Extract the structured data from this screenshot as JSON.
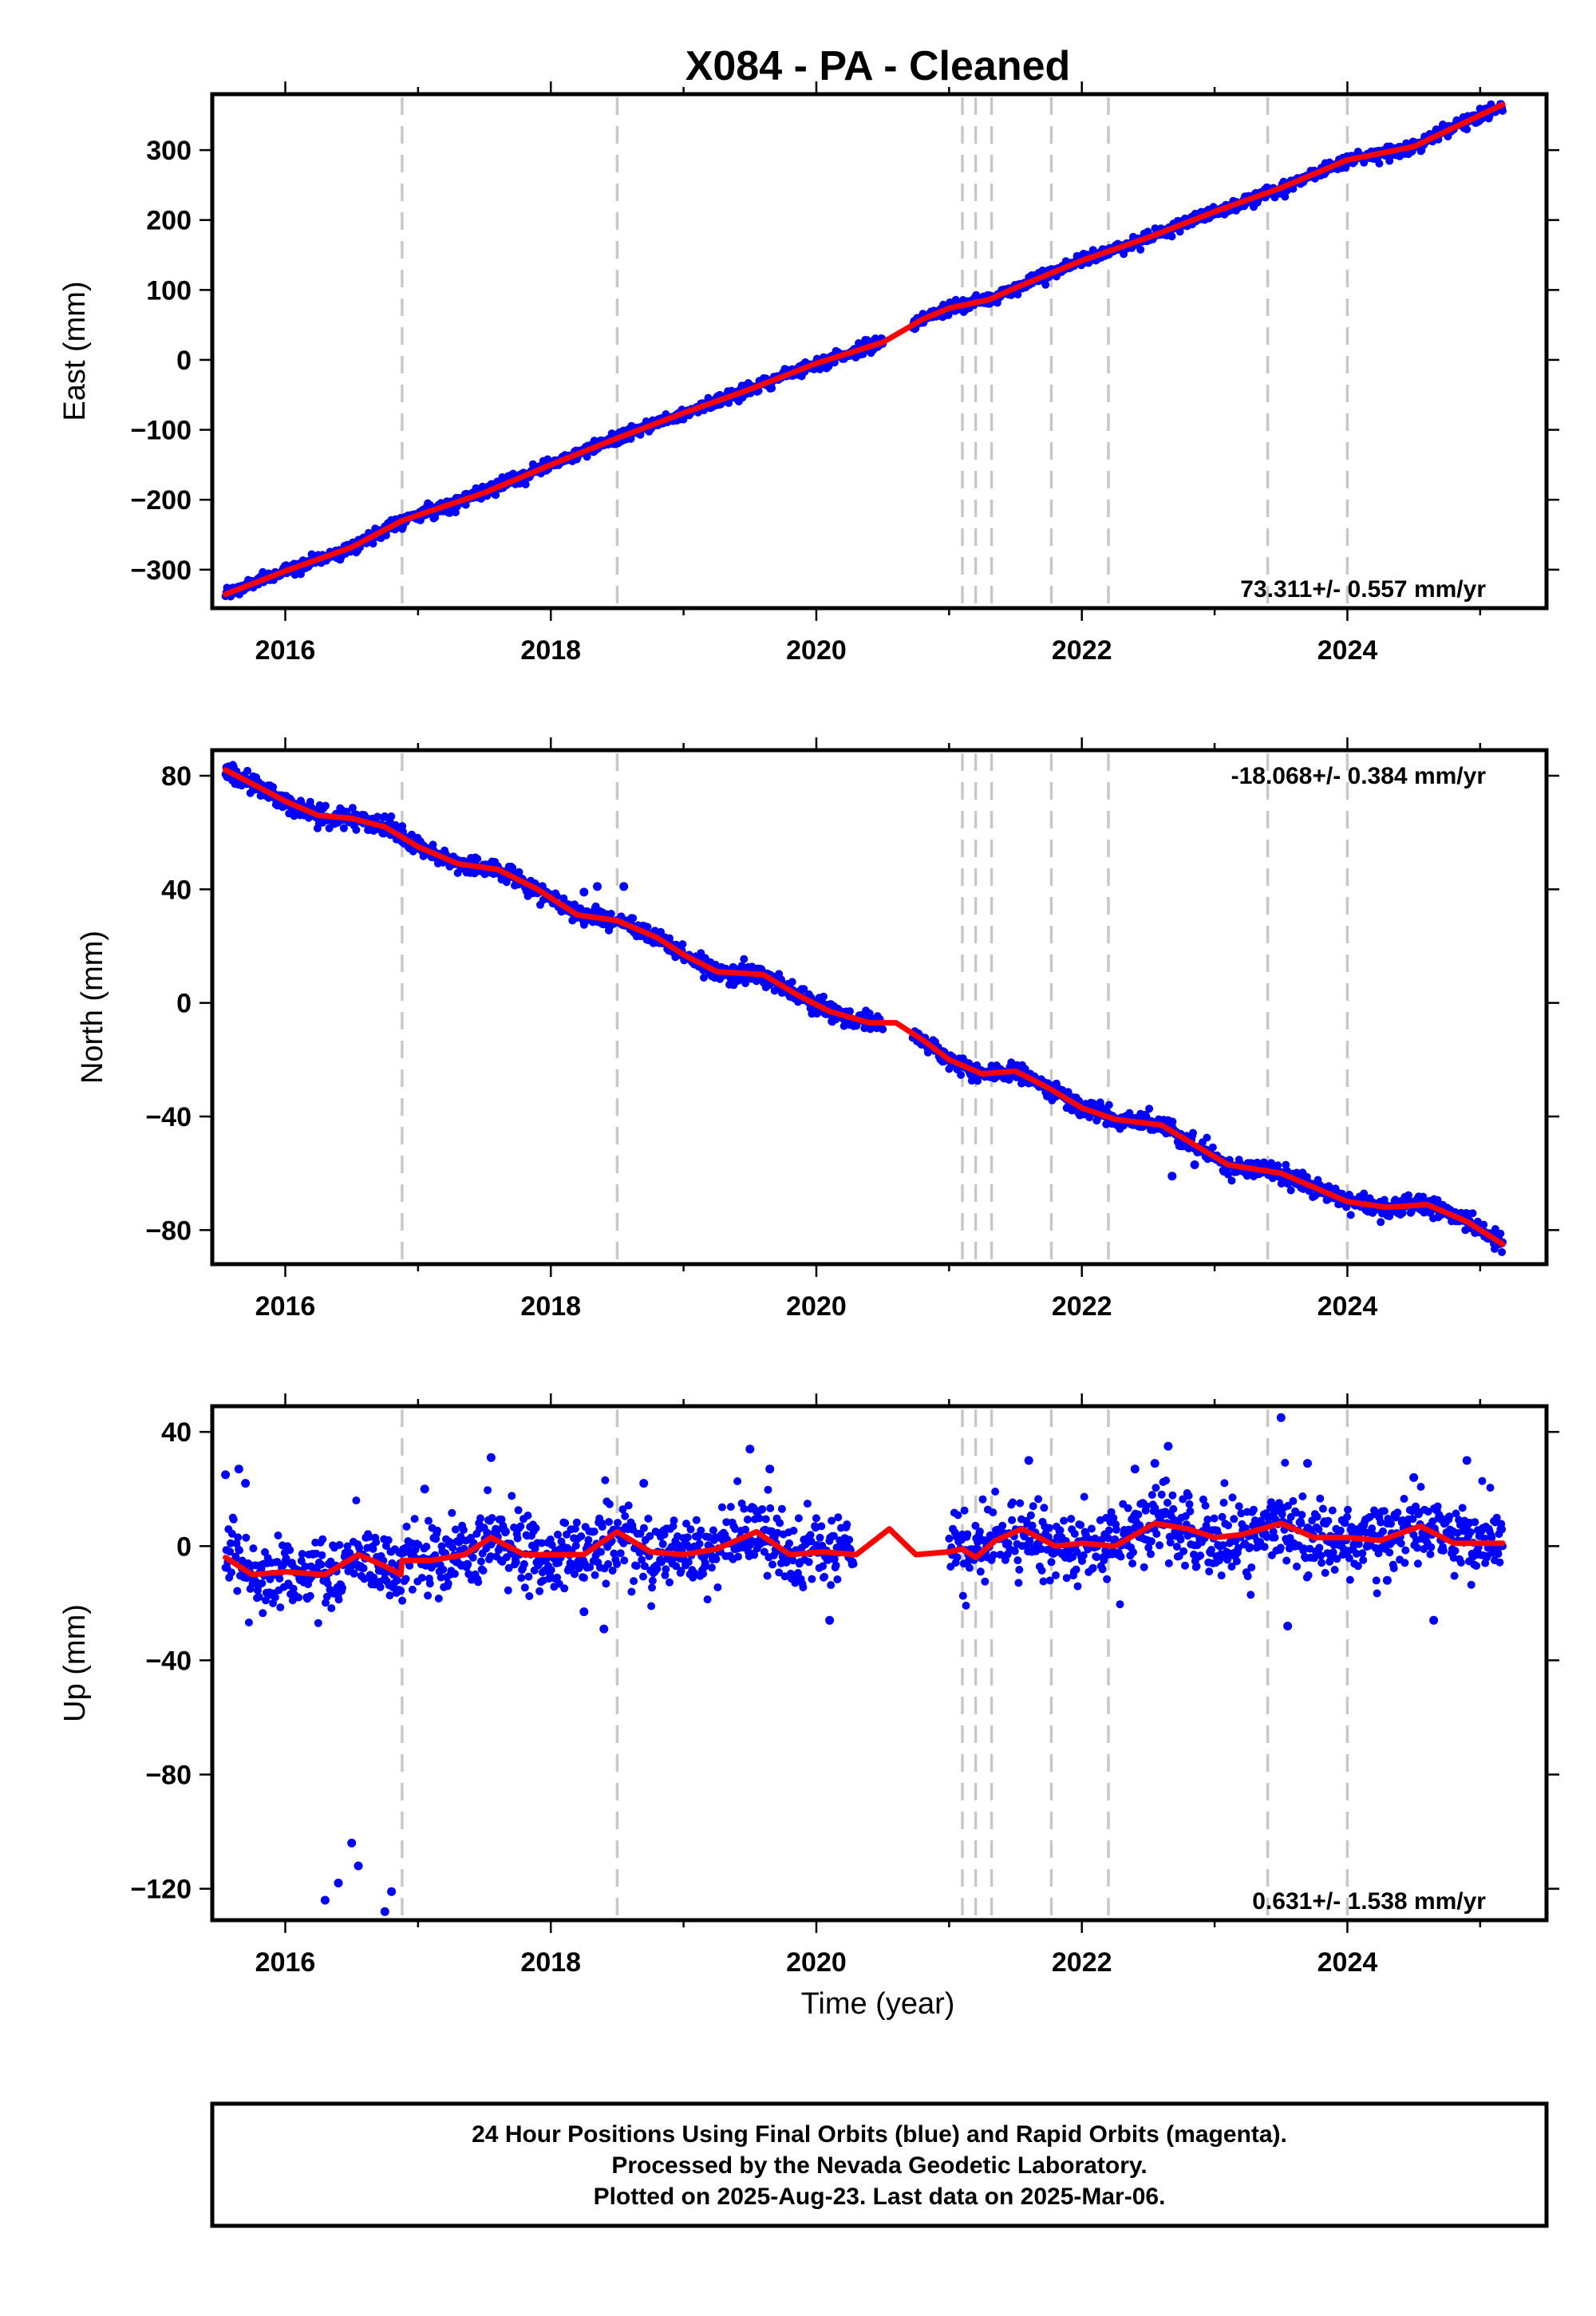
{
  "title": "X084  - PA - Cleaned",
  "xlabel": "Time (year)",
  "footer": [
    "24 Hour Positions Using Final Orbits (blue) and Rapid Orbits (magenta).",
    "Processed by the Nevada Geodetic Laboratory.",
    "Plotted on 2025-Aug-23. Last data on 2025-Mar-06."
  ],
  "colors": {
    "final_orbits": "#0000ff",
    "model": "#ff0000",
    "events": "#c8c8c8",
    "frame": "#000000"
  },
  "chart_data": [
    {
      "type": "scatter",
      "ylabel": "East (mm)",
      "rate_text": "73.311+/- 0.557 mm/yr",
      "rate_position": "bottom-right",
      "xlim": [
        2015.45,
        2025.5
      ],
      "ylim": [
        -355,
        380
      ],
      "xticks": [
        2016,
        2018,
        2020,
        2022,
        2024
      ],
      "xtick_labels": [
        "2016",
        "2018",
        "2020",
        "2022",
        "2024"
      ],
      "yticks": [
        -300,
        -200,
        -100,
        0,
        100,
        200,
        300
      ],
      "ytick_labels": [
        "−300",
        "−200",
        "−100",
        "0",
        "100",
        "200",
        "300"
      ],
      "event_lines": [
        2016.88,
        2018.5,
        2021.1,
        2021.2,
        2021.32,
        2021.77,
        2022.2,
        2023.4,
        2024.0
      ],
      "data_gap": [
        2020.5,
        2020.72
      ],
      "series": [
        {
          "role": "model",
          "x": [
            2015.55,
            2016.0,
            2016.5,
            2016.88,
            2017.0,
            2017.5,
            2018.0,
            2018.5,
            2019.0,
            2019.5,
            2020.0,
            2020.5,
            2020.8,
            2021.0,
            2021.3,
            2021.5,
            2022.0,
            2022.5,
            2023.0,
            2023.5,
            2024.0,
            2024.5,
            2025.17
          ],
          "y": [
            -335,
            -302,
            -268,
            -230,
            -222,
            -190,
            -150,
            -112,
            -76,
            -42,
            -5,
            25,
            58,
            74,
            86,
            103,
            142,
            175,
            212,
            246,
            286,
            305,
            365
          ]
        },
        {
          "role": "observations",
          "scatter_mm": 4.5,
          "outliers": []
        }
      ]
    },
    {
      "type": "scatter",
      "ylabel": "North (mm)",
      "rate_text": "-18.068+/- 0.384 mm/yr",
      "rate_position": "top-right",
      "xlim": [
        2015.45,
        2025.5
      ],
      "ylim": [
        -92,
        89
      ],
      "xticks": [
        2016,
        2018,
        2020,
        2022,
        2024
      ],
      "xtick_labels": [
        "2016",
        "2018",
        "2020",
        "2022",
        "2024"
      ],
      "yticks": [
        -80,
        -40,
        0,
        40,
        80
      ],
      "ytick_labels": [
        "−80",
        "−40",
        "0",
        "40",
        "80"
      ],
      "event_lines": [
        2016.88,
        2018.5,
        2021.1,
        2021.2,
        2021.32,
        2021.77,
        2022.2,
        2023.4,
        2024.0
      ],
      "data_gap": [
        2020.5,
        2020.72
      ],
      "series": [
        {
          "role": "model",
          "x": [
            2015.55,
            2015.8,
            2016.0,
            2016.25,
            2016.5,
            2016.75,
            2017.0,
            2017.3,
            2017.6,
            2017.9,
            2018.2,
            2018.5,
            2018.8,
            2019.0,
            2019.25,
            2019.6,
            2019.85,
            2020.1,
            2020.4,
            2020.6,
            2020.8,
            2021.0,
            2021.25,
            2021.5,
            2021.75,
            2022.0,
            2022.25,
            2022.6,
            2022.85,
            2023.1,
            2023.5,
            2023.75,
            2024.0,
            2024.3,
            2024.6,
            2024.9,
            2025.17
          ],
          "y": [
            82,
            76,
            71,
            66,
            65,
            62,
            55,
            49,
            47,
            40,
            31,
            29,
            23,
            17,
            11,
            10,
            3,
            -3,
            -7,
            -7,
            -13,
            -20,
            -25,
            -24,
            -30,
            -37,
            -41,
            -43,
            -50,
            -57,
            -60,
            -65,
            -70,
            -72,
            -71,
            -77,
            -85
          ]
        },
        {
          "role": "observations",
          "scatter_mm": 1.6,
          "outliers": [
            [
              2018.25,
              39
            ],
            [
              2018.35,
              41
            ],
            [
              2018.55,
              41
            ],
            [
              2022.68,
              -61
            ],
            [
              2022.85,
              -57
            ]
          ]
        }
      ]
    },
    {
      "type": "scatter",
      "ylabel": "Up (mm)",
      "rate_text": "0.631+/- 1.538 mm/yr",
      "rate_position": "bottom-right",
      "xlim": [
        2015.45,
        2025.5
      ],
      "ylim": [
        -131,
        49
      ],
      "xticks": [
        2016,
        2018,
        2020,
        2022,
        2024
      ],
      "xtick_labels": [
        "2016",
        "2018",
        "2020",
        "2022",
        "2024"
      ],
      "yticks": [
        -120,
        -80,
        -40,
        0,
        40
      ],
      "ytick_labels": [
        "−120",
        "−80",
        "−40",
        "0",
        "40"
      ],
      "event_lines": [
        2016.88,
        2018.5,
        2021.1,
        2021.2,
        2021.32,
        2021.77,
        2022.2,
        2023.4,
        2024.0
      ],
      "data_gap": [
        2020.28,
        2021.0
      ],
      "series": [
        {
          "role": "model",
          "x": [
            2015.55,
            2015.75,
            2016.0,
            2016.3,
            2016.55,
            2016.75,
            2016.87,
            2016.88,
            2017.1,
            2017.35,
            2017.55,
            2017.8,
            2018.05,
            2018.25,
            2018.5,
            2018.75,
            2019.0,
            2019.25,
            2019.55,
            2019.8,
            2020.05,
            2020.3,
            2020.55,
            2020.75,
            2021.0,
            2021.1,
            2021.2,
            2021.35,
            2021.55,
            2021.8,
            2022.0,
            2022.25,
            2022.55,
            2022.8,
            2023.0,
            2023.2,
            2023.5,
            2023.75,
            2024.0,
            2024.25,
            2024.55,
            2024.8,
            2025.0,
            2025.17
          ],
          "y": [
            -4,
            -10,
            -9,
            -10,
            -3,
            -7,
            -10,
            -5,
            -5,
            -3,
            3,
            -3,
            -3,
            -3,
            5,
            -2,
            -3,
            -1,
            5,
            -3,
            -2,
            -3,
            6,
            -3,
            -2,
            -1,
            -4,
            2,
            6,
            0,
            1,
            0,
            8,
            6,
            3,
            4,
            8,
            3,
            3,
            2,
            7,
            1,
            1,
            1
          ]
        },
        {
          "role": "observations",
          "scatter_mm": 6.5,
          "outliers": [
            [
              2015.55,
              25
            ],
            [
              2015.65,
              27
            ],
            [
              2015.7,
              22
            ],
            [
              2016.3,
              -124
            ],
            [
              2016.4,
              -118
            ],
            [
              2016.5,
              -104
            ],
            [
              2016.55,
              -112
            ],
            [
              2016.75,
              -128
            ],
            [
              2016.8,
              -121
            ],
            [
              2017.55,
              31
            ],
            [
              2017.05,
              20
            ],
            [
              2018.25,
              -23
            ],
            [
              2018.4,
              -29
            ],
            [
              2018.7,
              22
            ],
            [
              2019.5,
              34
            ],
            [
              2019.65,
              27
            ],
            [
              2020.1,
              -26
            ],
            [
              2021.6,
              30
            ],
            [
              2022.4,
              27
            ],
            [
              2022.55,
              29
            ],
            [
              2022.65,
              35
            ],
            [
              2023.5,
              45
            ],
            [
              2023.55,
              -28
            ],
            [
              2023.7,
              29
            ],
            [
              2024.3,
              -12
            ],
            [
              2024.5,
              24
            ],
            [
              2024.65,
              -26
            ],
            [
              2024.9,
              30
            ]
          ]
        }
      ]
    }
  ]
}
